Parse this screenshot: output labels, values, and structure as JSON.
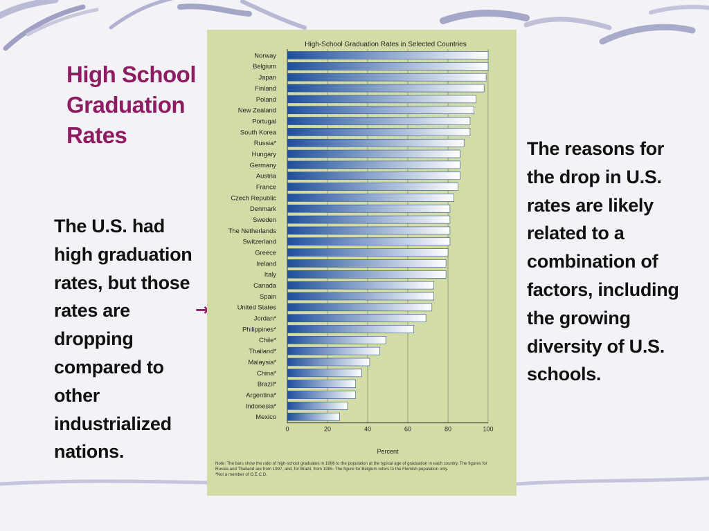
{
  "slide": {
    "title": "High School Graduation Rates",
    "left_text": "The U.S. had high graduation rates, but those rates are dropping compared to other industrialized nations.",
    "right_text": "The reasons for the drop in U.S. rates are likely related to a combination of factors, including the growing diversity of U.S. schools.",
    "arrow_icon": "arrow-right-icon",
    "title_color": "#8e1c62"
  },
  "chart_data": {
    "type": "bar",
    "orientation": "horizontal",
    "title": "High-School Graduation Rates in Selected Countries",
    "xlabel": "Percent",
    "ylabel": "",
    "xlim": [
      0,
      100
    ],
    "xticks": [
      0,
      20,
      40,
      60,
      80,
      100
    ],
    "grid": true,
    "categories": [
      "Norway",
      "Belgium",
      "Japan",
      "Finland",
      "Poland",
      "New Zealand",
      "Portugal",
      "South Korea",
      "Russia*",
      "Hungary",
      "Germany",
      "Austria",
      "France",
      "Czech Republic",
      "Denmark",
      "Sweden",
      "The Netherlands",
      "Switzerland",
      "Greece",
      "Ireland",
      "Italy",
      "Canada",
      "Spain",
      "United States",
      "Jordan*",
      "Philippines*",
      "Chile*",
      "Thailand*",
      "Malaysia*",
      "China*",
      "Brazil*",
      "Argentina*",
      "Indonesia*",
      "Mexico"
    ],
    "values": [
      100,
      100,
      99,
      98,
      94,
      93,
      91,
      91,
      88,
      86,
      86,
      86,
      85,
      83,
      81,
      81,
      81,
      81,
      80,
      79,
      79,
      73,
      73,
      72,
      69,
      63,
      49,
      46,
      41,
      37,
      34,
      34,
      30,
      26
    ],
    "note": "Note: The bars show the ratio of high-school graduates in 1996 to the population at the typical age of graduation in each country. The figures for Russia and Thailand are from 1997, and, for Brazil, from 1995. The figure for Belgium refers to the Flemish population only.",
    "footnote": "*Not a member of O.E.C.D.",
    "bar_color_dark": "#1e4f9c",
    "bar_color_light": "#ffffff"
  }
}
